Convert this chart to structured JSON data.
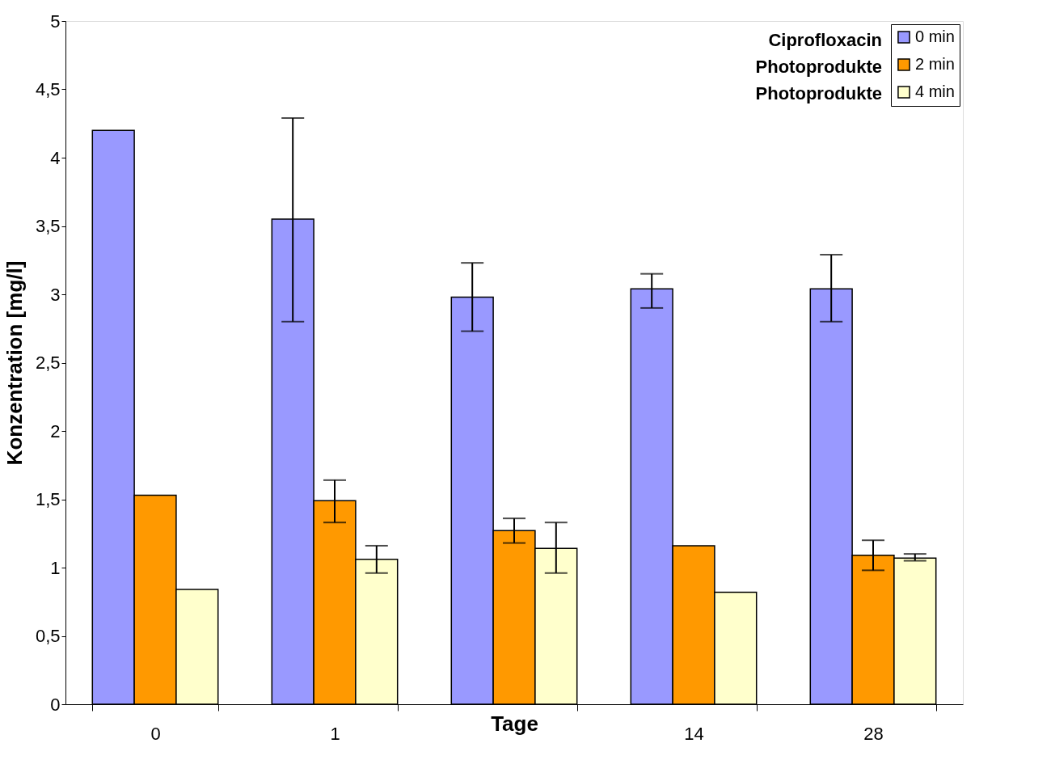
{
  "chart_data": {
    "type": "bar",
    "xlabel": "Tage",
    "ylabel": "Konzentration [mg/l]",
    "categories": [
      "0",
      "1",
      null,
      "14",
      "28"
    ],
    "series": [
      {
        "name": "0 min",
        "color": "#9999ff",
        "values": [
          4.2,
          3.55,
          2.98,
          3.04,
          3.04
        ],
        "errors": [
          null,
          [
            2.8,
            4.29
          ],
          [
            2.73,
            3.23
          ],
          [
            2.9,
            3.15
          ],
          [
            2.8,
            3.29
          ]
        ]
      },
      {
        "name": "2 min",
        "color": "#ff9900",
        "values": [
          1.53,
          1.49,
          1.27,
          1.16,
          1.09
        ],
        "errors": [
          null,
          [
            1.33,
            1.64
          ],
          [
            1.18,
            1.36
          ],
          null,
          [
            0.98,
            1.2
          ]
        ]
      },
      {
        "name": "4 min",
        "color": "#ffffcc",
        "values": [
          0.84,
          1.06,
          1.14,
          0.82,
          1.07
        ],
        "errors": [
          null,
          [
            0.96,
            1.16
          ],
          [
            0.96,
            1.33
          ],
          null,
          [
            1.05,
            1.1
          ]
        ]
      }
    ],
    "annotations": [
      "Ciprofloxacin",
      "Photoprodukte",
      "Photoprodukte"
    ],
    "ylim": [
      0,
      5
    ],
    "yticks": [
      0,
      {
        "value": 0.5,
        "label": "0,5"
      },
      1,
      {
        "value": 1.5,
        "label": "1,5"
      },
      2,
      {
        "value": 2.5,
        "label": "2,5"
      },
      3,
      {
        "value": 3.5,
        "label": "3,5"
      },
      4,
      {
        "value": 4.5,
        "label": "4,5"
      },
      5
    ],
    "grid": false,
    "legend": "top right"
  }
}
